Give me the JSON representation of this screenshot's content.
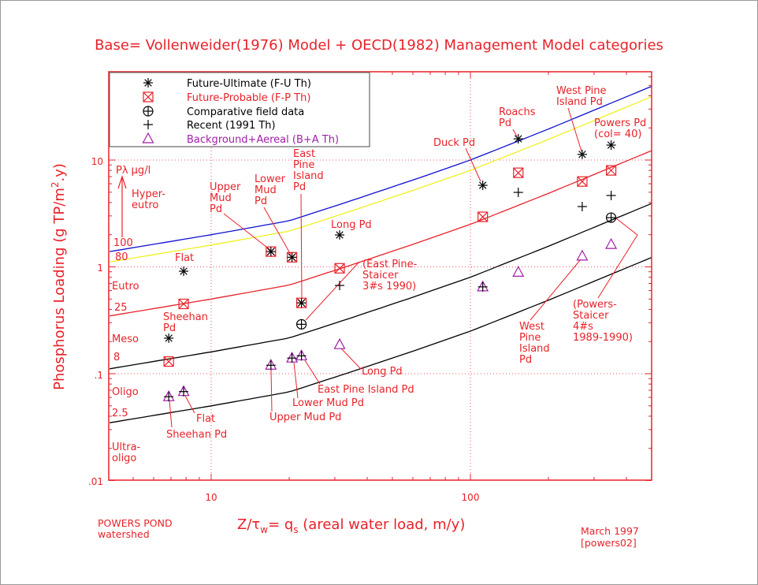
{
  "chart_data": {
    "type": "scatter",
    "title": "Base= Vollenweider(1976) Model + OECD(1982) Management Model categories",
    "xlabel": "Z/τw= qs (areal water load, m/y)",
    "xlabel_parts": {
      "a": "Z/τ",
      "b": "w",
      "c": "= q",
      "d": "s",
      "e": " (areal water load, m/y)"
    },
    "ylabel": "Phosphorus Loading (g TP/m2.y)",
    "ylabel_parts": {
      "a": "Phosphorus Loading (g TP/m",
      "b": "2",
      "c": ".y)"
    },
    "xscale": "log",
    "yscale": "log",
    "xlim": [
      4.06,
      500
    ],
    "ylim": [
      0.01,
      67
    ],
    "grid": true,
    "xticks": [
      {
        "value": 10,
        "label": "10"
      },
      {
        "value": 100,
        "label": "100"
      }
    ],
    "yticks": [
      {
        "value": 10,
        "label": "10"
      },
      {
        "value": 1,
        "label": "1"
      },
      {
        "value": 0.1,
        "label": ".1"
      },
      {
        "value": 0.01,
        "label": ".01"
      }
    ],
    "legend_position": "top-left",
    "series": [
      {
        "name": "Future-Ultimate (F-U Th)",
        "marker": "asterisk",
        "color": "#000000",
        "label_color": "#000000",
        "points": [
          [
            6.86,
            0.215
          ],
          [
            7.83,
            0.91
          ],
          [
            17.0,
            1.39
          ],
          [
            20.5,
            1.23
          ],
          [
            22.3,
            0.46
          ],
          [
            31.3,
            1.99
          ],
          [
            111.6,
            5.8
          ],
          [
            153,
            15.8
          ],
          [
            270,
            11.3
          ],
          [
            349,
            13.8
          ]
        ]
      },
      {
        "name": "Future-Probable (F-P Th)",
        "marker": "box-x",
        "color": "#e8222a",
        "label_color": "#e8222a",
        "points": [
          [
            6.86,
            0.13
          ],
          [
            7.83,
            0.45
          ],
          [
            17.0,
            1.39
          ],
          [
            20.5,
            1.23
          ],
          [
            22.3,
            0.46
          ],
          [
            31.3,
            0.97
          ],
          [
            111.6,
            2.94
          ],
          [
            153,
            7.6
          ],
          [
            270,
            6.3
          ],
          [
            349,
            8.0
          ]
        ]
      },
      {
        "name": "Comparative field data",
        "marker": "circle-plus",
        "color": "#000000",
        "label_color": "#000000",
        "points": [
          [
            22.3,
            0.29
          ],
          [
            349,
            2.89
          ]
        ]
      },
      {
        "name": "Recent (1991 Th)",
        "marker": "plus",
        "color": "#000000",
        "label_color": "#000000",
        "points": [
          [
            6.86,
            0.061
          ],
          [
            7.83,
            0.068
          ],
          [
            17.0,
            0.12
          ],
          [
            20.5,
            0.14
          ],
          [
            22.3,
            0.147
          ],
          [
            31.3,
            0.67
          ],
          [
            111.6,
            0.65
          ],
          [
            153,
            4.98
          ],
          [
            270,
            3.67
          ],
          [
            349,
            4.66
          ]
        ]
      },
      {
        "name": "Background+Aereal (B+A Th)",
        "marker": "triangle",
        "color": "#a01ea8",
        "label_color": "#a01ea8",
        "points": [
          [
            6.86,
            0.061
          ],
          [
            7.83,
            0.068
          ],
          [
            17.0,
            0.12
          ],
          [
            20.5,
            0.14
          ],
          [
            22.3,
            0.147
          ],
          [
            31.3,
            0.187
          ],
          [
            111.6,
            0.65
          ],
          [
            153,
            0.89
          ],
          [
            270,
            1.26
          ],
          [
            349,
            1.62
          ]
        ]
      }
    ],
    "criteria_curves": {
      "base_shape_for_100": [
        [
          4.06,
          1.39
        ],
        [
          10,
          2.0
        ],
        [
          20,
          2.7
        ],
        [
          33,
          4.0
        ],
        [
          60,
          6.5
        ],
        [
          100,
          10
        ],
        [
          200,
          19.5
        ],
        [
          500,
          49
        ]
      ],
      "curves": [
        {
          "p_ug_l": 100,
          "label": "100",
          "color": "#1010d0"
        },
        {
          "p_ug_l": 80,
          "label": "80",
          "color": "#f0f020"
        },
        {
          "p_ug_l": 25,
          "label": "25",
          "color": "#e8222a"
        },
        {
          "p_ug_l": 8,
          "label": "8",
          "color": "#000000"
        },
        {
          "p_ug_l": 2.5,
          "label": "2.5",
          "color": "#000000"
        }
      ]
    },
    "trophic_labels": {
      "unit": "Pλ μg/l",
      "hyper": [
        "Hyper-",
        "eutro"
      ],
      "eutro": "Eutro",
      "meso": "Meso",
      "oligo": "Oligo",
      "ultra": [
        "Ultra-",
        "oligo"
      ]
    },
    "annotations": [
      {
        "lines": [
          "Upper",
          "Mud",
          "Pd"
        ]
      },
      {
        "lines": [
          "Lower",
          "Mud",
          "Pd"
        ]
      },
      {
        "lines": [
          "East",
          "Pine",
          "Island",
          "Pd"
        ]
      },
      {
        "lines": [
          "Long Pd"
        ]
      },
      {
        "lines": [
          "Flat"
        ]
      },
      {
        "lines": [
          "Sheehan",
          "Pd"
        ]
      },
      {
        "lines": [
          "(East Pine-",
          "Staicer",
          "3#s   1990)"
        ]
      },
      {
        "lines": [
          "Long Pd"
        ]
      },
      {
        "lines": [
          "East Pine Island Pd"
        ]
      },
      {
        "lines": [
          "Lower Mud Pd"
        ]
      },
      {
        "lines": [
          "Upper Mud Pd"
        ]
      },
      {
        "lines": [
          "Flat"
        ]
      },
      {
        "lines": [
          "Sheehan Pd"
        ]
      },
      {
        "lines": [
          "Duck Pd"
        ]
      },
      {
        "lines": [
          "Roachs",
          "Pd"
        ]
      },
      {
        "lines": [
          "West Pine",
          "Island Pd"
        ]
      },
      {
        "lines": [
          "Powers Pd",
          "(col= 40)"
        ]
      },
      {
        "lines": [
          "West",
          "Pine",
          "Island",
          "Pd"
        ]
      },
      {
        "lines": [
          "(Powers-",
          "Staicer",
          "4#s",
          "1989-1990)"
        ]
      }
    ],
    "footer": {
      "left": [
        "POWERS POND",
        "watershed"
      ],
      "right": [
        "March 1997",
        "[powers02]"
      ]
    }
  }
}
